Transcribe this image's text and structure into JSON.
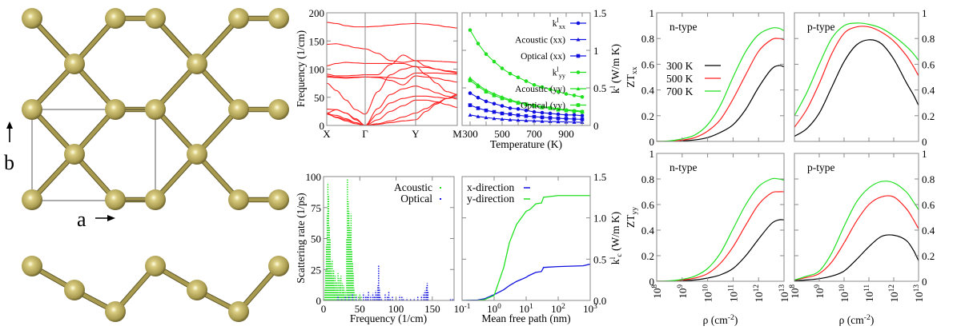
{
  "structure": {
    "axis_a_label": "a",
    "axis_b_label": "b",
    "atom_color": "#a89a4e"
  },
  "chart_data": [
    {
      "id": "phonon",
      "type": "line",
      "ylabel": "Frequency (1/cm)",
      "ylim": [
        0,
        200
      ],
      "yticks": [
        "0",
        "50",
        "100",
        "150",
        "200"
      ],
      "kpath_labels": [
        "X",
        "Γ",
        "Y",
        "M"
      ],
      "color": "#ff2020",
      "kpoints": [
        0,
        0.25,
        0.5,
        0.75,
        1,
        1.25,
        1.5,
        1.75,
        2,
        2.25,
        2.5,
        2.75,
        3
      ],
      "bands": [
        [
          183,
          181,
          177,
          175,
          175,
          176,
          178,
          180,
          181,
          180,
          178,
          175,
          173
        ],
        [
          144,
          145,
          142,
          138,
          136,
          128,
          115,
          112,
          115,
          115,
          114,
          113,
          112
        ],
        [
          106,
          110,
          112,
          111,
          110,
          110,
          110,
          110,
          104,
          103,
          100,
          97,
          95
        ],
        [
          91,
          88,
          88,
          89,
          90,
          90,
          108,
          125,
          115,
          105,
          100,
          96,
          93
        ],
        [
          88,
          86,
          85,
          86,
          86,
          86,
          85,
          83,
          93,
          93,
          93,
          92,
          91
        ],
        [
          86,
          85,
          84,
          85,
          86,
          85,
          80,
          72,
          88,
          86,
          84,
          80,
          77
        ],
        [
          75,
          62,
          45,
          28,
          20,
          60,
          90,
          100,
          105,
          90,
          75,
          60,
          55
        ],
        [
          29,
          28,
          22,
          12,
          0,
          30,
          55,
          65,
          70,
          65,
          58,
          52,
          47
        ],
        [
          22,
          28,
          22,
          10,
          0,
          20,
          40,
          48,
          52,
          52,
          50,
          48,
          50
        ],
        [
          20,
          15,
          10,
          5,
          0,
          10,
          25,
          35,
          45,
          45,
          42,
          37,
          32
        ],
        [
          22,
          14,
          8,
          3,
          0,
          3,
          8,
          15,
          22,
          30,
          40,
          48,
          55
        ],
        [
          20,
          18,
          12,
          5,
          0,
          2,
          5,
          8,
          10,
          25,
          38,
          48,
          53
        ]
      ]
    },
    {
      "id": "kappa-temperature",
      "type": "line",
      "xlabel": "Temperature (K)",
      "ylabel": "k^{l} (W/m K)",
      "xlim": [
        250,
        1050
      ],
      "ylim": [
        0,
        1.5
      ],
      "xticks": [
        300,
        500,
        700,
        900
      ],
      "yticks": [
        "0",
        "0.5",
        "1",
        "1.5"
      ],
      "yaxis_side": "right",
      "legend": "top-right",
      "x": [
        300,
        350,
        400,
        450,
        500,
        550,
        600,
        650,
        700,
        750,
        800,
        850,
        900,
        950,
        1000
      ],
      "series": [
        {
          "name": "k^{l}_{xx}",
          "color": "#1010e0",
          "marker": "circle",
          "values": [
            0.43,
            0.37,
            0.32,
            0.29,
            0.26,
            0.23,
            0.22,
            0.2,
            0.18,
            0.17,
            0.16,
            0.15,
            0.14,
            0.14,
            0.13
          ]
        },
        {
          "name": "Acoustic (xx)",
          "color": "#1010e0",
          "marker": "triangle",
          "values": [
            0.14,
            0.12,
            0.105,
            0.093,
            0.084,
            0.076,
            0.07,
            0.065,
            0.06,
            0.056,
            0.053,
            0.05,
            0.047,
            0.044,
            0.042
          ]
        },
        {
          "name": "Optical (xx)",
          "color": "#1010e0",
          "marker": "square",
          "values": [
            0.27,
            0.23,
            0.2,
            0.18,
            0.16,
            0.15,
            0.135,
            0.125,
            0.116,
            0.108,
            0.101,
            0.095,
            0.09,
            0.085,
            0.081
          ]
        },
        {
          "name": "k^{l}_{yy}",
          "color": "#20e020",
          "marker": "circle",
          "values": [
            1.27,
            1.09,
            0.95,
            0.85,
            0.76,
            0.69,
            0.64,
            0.59,
            0.54,
            0.51,
            0.48,
            0.45,
            0.42,
            0.4,
            0.38
          ]
        },
        {
          "name": "Acoustic (yy)",
          "color": "#20e020",
          "marker": "triangle",
          "values": [
            0.63,
            0.54,
            0.47,
            0.42,
            0.38,
            0.34,
            0.31,
            0.29,
            0.27,
            0.25,
            0.24,
            0.22,
            0.21,
            0.2,
            0.19
          ]
        },
        {
          "name": "Optical (yy)",
          "color": "#20e020",
          "marker": "square",
          "values": [
            0.6,
            0.52,
            0.45,
            0.4,
            0.36,
            0.33,
            0.3,
            0.28,
            0.26,
            0.24,
            0.23,
            0.21,
            0.2,
            0.19,
            0.18
          ]
        }
      ]
    },
    {
      "id": "scattering-rate",
      "type": "scatter",
      "xlabel": "Frequency (1/cm)",
      "ylabel": "Scattering rate (1/ps)",
      "xlim": [
        0,
        180
      ],
      "ylim": [
        0,
        100
      ],
      "xticks": [
        0,
        50,
        100,
        150
      ],
      "yticks": [
        0,
        25,
        50,
        75,
        100
      ],
      "legend": "top-right",
      "series": [
        {
          "name": "Acoustic",
          "color": "#20e020",
          "points": [
            [
              1,
              2
            ],
            [
              2,
              10
            ],
            [
              3,
              25
            ],
            [
              4,
              45
            ],
            [
              5,
              70
            ],
            [
              6,
              95
            ],
            [
              7,
              85
            ],
            [
              8,
              60
            ],
            [
              9,
              40
            ],
            [
              10,
              30
            ],
            [
              11,
              20
            ],
            [
              12,
              33
            ],
            [
              13,
              18
            ],
            [
              14,
              25
            ],
            [
              15,
              12
            ],
            [
              16,
              20
            ],
            [
              17,
              8
            ],
            [
              18,
              15
            ],
            [
              19,
              10
            ],
            [
              20,
              22
            ],
            [
              21,
              6
            ],
            [
              22,
              18
            ],
            [
              23,
              12
            ],
            [
              24,
              20
            ],
            [
              25,
              5
            ],
            [
              26,
              14
            ],
            [
              27,
              8
            ],
            [
              28,
              12
            ],
            [
              29,
              4
            ],
            [
              30,
              8
            ],
            [
              31,
              3
            ],
            [
              32,
              50
            ],
            [
              33,
              98
            ],
            [
              34,
              80
            ],
            [
              35,
              72
            ],
            [
              36,
              60
            ],
            [
              37,
              55
            ],
            [
              38,
              70
            ],
            [
              39,
              40
            ],
            [
              40,
              30
            ],
            [
              41,
              22
            ],
            [
              42,
              10
            ],
            [
              43,
              6
            ],
            [
              45,
              5
            ],
            [
              48,
              4
            ],
            [
              50,
              6
            ],
            [
              52,
              3
            ],
            [
              55,
              5
            ],
            [
              5,
              15
            ],
            [
              8,
              22
            ],
            [
              10,
              12
            ],
            [
              14,
              8
            ],
            [
              18,
              5
            ],
            [
              22,
              3
            ],
            [
              26,
              2
            ],
            [
              3,
              5
            ],
            [
              6,
              30
            ],
            [
              9,
              50
            ],
            [
              12,
              8
            ],
            [
              16,
              4
            ]
          ]
        },
        {
          "name": "Optical",
          "color": "#1010e0",
          "points": [
            [
              20,
              3
            ],
            [
              25,
              2
            ],
            [
              30,
              3
            ],
            [
              35,
              4
            ],
            [
              40,
              5
            ],
            [
              45,
              3
            ],
            [
              50,
              2
            ],
            [
              55,
              6
            ],
            [
              58,
              4
            ],
            [
              60,
              3
            ],
            [
              62,
              7
            ],
            [
              65,
              4
            ],
            [
              68,
              6
            ],
            [
              70,
              3
            ],
            [
              72,
              8
            ],
            [
              74,
              5
            ],
            [
              75,
              12
            ],
            [
              76,
              29
            ],
            [
              77,
              10
            ],
            [
              78,
              4
            ],
            [
              80,
              2
            ],
            [
              85,
              5
            ],
            [
              88,
              3
            ],
            [
              90,
              7
            ],
            [
              92,
              2
            ],
            [
              95,
              3
            ],
            [
              100,
              2
            ],
            [
              105,
              4
            ],
            [
              108,
              3
            ],
            [
              110,
              2
            ],
            [
              115,
              2
            ],
            [
              120,
              1
            ],
            [
              125,
              2
            ],
            [
              130,
              3
            ],
            [
              135,
              4
            ],
            [
              138,
              6
            ],
            [
              140,
              8
            ],
            [
              142,
              11
            ],
            [
              143,
              14
            ],
            [
              144,
              7
            ],
            [
              175,
              1
            ],
            [
              178,
              1
            ],
            [
              180,
              1
            ]
          ]
        }
      ]
    },
    {
      "id": "cumulative-kappa",
      "type": "line",
      "xlabel": "Mean free path (nm)",
      "ylabel": "k^{l}_{c} (W/m K)",
      "xscale": "log",
      "xlim": [
        0.1,
        1000
      ],
      "ylim": [
        0,
        1.5
      ],
      "xtick_exponents": [
        -1,
        0,
        1,
        2,
        3
      ],
      "xtick_base": "10",
      "yticks": [
        "0.0",
        "0.5",
        "1.0",
        "1.5"
      ],
      "yaxis_side": "right",
      "legend": "top-left",
      "series": [
        {
          "name": "x-direction",
          "color": "#1010e0",
          "x": [
            0.1,
            0.3,
            0.5,
            1,
            2,
            3,
            5,
            10,
            12,
            20,
            30,
            35,
            100,
            600,
            1000
          ],
          "values": [
            0,
            0.005,
            0.02,
            0.07,
            0.13,
            0.18,
            0.23,
            0.28,
            0.3,
            0.34,
            0.35,
            0.4,
            0.41,
            0.42,
            0.44
          ]
        },
        {
          "name": "y-direction",
          "color": "#20e020",
          "x": [
            0.1,
            0.3,
            0.5,
            1,
            2,
            3,
            5,
            10,
            13,
            20,
            30,
            35,
            100,
            1000
          ],
          "values": [
            0,
            0,
            0.01,
            0.06,
            0.4,
            0.7,
            0.92,
            1.08,
            1.1,
            1.17,
            1.18,
            1.25,
            1.27,
            1.27
          ]
        }
      ]
    },
    {
      "id": "zt",
      "type": "line",
      "xlabel": "ρ (cm^{-2})",
      "xscale": "log",
      "xlim": [
        100000000.0,
        10000000000000.0
      ],
      "xtick_exponents": [
        8,
        9,
        10,
        11,
        12,
        13
      ],
      "xtick_base": "10",
      "ylim": [
        0,
        1
      ],
      "yticks": [
        "0",
        "0.2",
        "0.4",
        "0.6",
        "0.8",
        "1"
      ],
      "legend": [
        "300 K",
        "500 K",
        "700 K"
      ],
      "colors": [
        "#000000",
        "#ff2020",
        "#20e020"
      ],
      "log_x": [
        8,
        8.5,
        9,
        9.5,
        10,
        10.5,
        11,
        11.5,
        12,
        12.5,
        12.8,
        13
      ],
      "panels": [
        {
          "ylabel": "ZT_{xx}",
          "annotation": "n-type",
          "series": [
            [
              0,
              0,
              0.005,
              0.012,
              0.03,
              0.07,
              0.13,
              0.25,
              0.42,
              0.56,
              0.59,
              0.58
            ],
            [
              0,
              0.002,
              0.01,
              0.03,
              0.08,
              0.17,
              0.33,
              0.52,
              0.7,
              0.79,
              0.8,
              0.79
            ],
            [
              0,
              0.004,
              0.02,
              0.05,
              0.13,
              0.28,
              0.5,
              0.7,
              0.83,
              0.88,
              0.88,
              0.86
            ]
          ]
        },
        {
          "annotation": "p-type",
          "series": [
            [
              0.04,
              0.1,
              0.22,
              0.42,
              0.62,
              0.75,
              0.79,
              0.76,
              0.64,
              0.46,
              0.36,
              0.28
            ],
            [
              0.11,
              0.25,
              0.45,
              0.68,
              0.84,
              0.89,
              0.89,
              0.85,
              0.78,
              0.67,
              0.58,
              0.51
            ],
            [
              0.2,
              0.38,
              0.6,
              0.8,
              0.9,
              0.92,
              0.91,
              0.88,
              0.82,
              0.74,
              0.68,
              0.63
            ]
          ]
        },
        {
          "ylabel": "ZT_{yy}",
          "annotation": "n-type",
          "series": [
            [
              0,
              0,
              0.005,
              0.01,
              0.025,
              0.05,
              0.1,
              0.2,
              0.33,
              0.45,
              0.48,
              0.48
            ],
            [
              0,
              0.002,
              0.01,
              0.025,
              0.06,
              0.14,
              0.27,
              0.44,
              0.6,
              0.69,
              0.7,
              0.7
            ],
            [
              0,
              0.003,
              0.015,
              0.04,
              0.1,
              0.22,
              0.41,
              0.6,
              0.74,
              0.8,
              0.8,
              0.79
            ]
          ]
        },
        {
          "annotation": "p-type",
          "series": [
            [
              0.005,
              0.01,
              0.02,
              0.04,
              0.08,
              0.17,
              0.27,
              0.35,
              0.36,
              0.32,
              0.24,
              0.16
            ],
            [
              0.01,
              0.03,
              0.06,
              0.15,
              0.3,
              0.47,
              0.6,
              0.66,
              0.66,
              0.57,
              0.48,
              0.41
            ],
            [
              0.01,
              0.04,
              0.08,
              0.22,
              0.43,
              0.62,
              0.73,
              0.78,
              0.77,
              0.7,
              0.62,
              0.56
            ]
          ]
        }
      ]
    }
  ]
}
